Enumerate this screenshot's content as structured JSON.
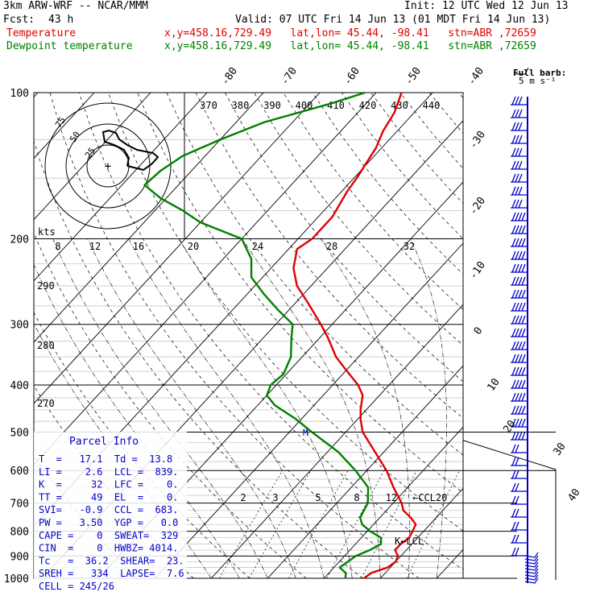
{
  "header": {
    "title": "3km ARW-WRF -- NCAR/MMM",
    "init": "Init: 12 UTC Wed 12 Jun 13",
    "fcst_label": "Fcst:",
    "fcst_value": "43 h",
    "valid": "Valid: 07 UTC Fri 14 Jun 13 (01 MDT Fri 14 Jun 13)",
    "temp_label": "Temperature",
    "temp_loc": "x,y=458.16,729.49   lat,lon= 45.44, -98.41   stn=ABR ,72659",
    "dew_label": "Dewpoint temperature",
    "dew_loc": "x,y=458.16,729.49   lat,lon= 45.44, -98.41   stn=ABR ,72659",
    "full_barb_label": "Full barb:",
    "full_barb_value": "5 m s⁻¹"
  },
  "colors": {
    "temperature": "#e00000",
    "dewpoint": "#008000",
    "barbs": "#0000cc",
    "grid": "#000000"
  },
  "chart_data": {
    "type": "line",
    "title": "",
    "y_axis": {
      "label": "",
      "scale": "log",
      "ticks": [
        100,
        200,
        300,
        400,
        500,
        600,
        700,
        800,
        900,
        1000
      ]
    },
    "x_axis_isotherms": {
      "ticks": [
        -80,
        -70,
        -60,
        -50,
        -40,
        -30,
        -20,
        -10,
        0,
        10,
        20,
        30,
        40
      ]
    },
    "theta_labels": [
      370,
      380,
      390,
      400,
      410,
      420,
      430,
      440
    ],
    "theta_left_labels": [
      290,
      280,
      270
    ],
    "hodograph": {
      "kts_label": "kts",
      "ticks": [
        8,
        12,
        16,
        20,
        24,
        28,
        32
      ],
      "ring_labels": [
        "75",
        "50",
        "25"
      ]
    },
    "mixing_ratio_labels": [
      "2",
      "3",
      "5",
      "8",
      "12"
    ],
    "level_markers": [
      "CCL20",
      "LCL"
    ],
    "series": [
      {
        "name": "Temperature",
        "points": [
          {
            "p": 1000,
            "t": 17.1
          },
          {
            "p": 975,
            "t": 17.5
          },
          {
            "p": 950,
            "t": 19.5
          },
          {
            "p": 925,
            "t": 20.0
          },
          {
            "p": 900,
            "t": 19.5
          },
          {
            "p": 875,
            "t": 18.0
          },
          {
            "p": 850,
            "t": 18.0
          },
          {
            "p": 825,
            "t": 18.5
          },
          {
            "p": 800,
            "t": 18.0
          },
          {
            "p": 775,
            "t": 17.5
          },
          {
            "p": 750,
            "t": 15.5
          },
          {
            "p": 725,
            "t": 13.0
          },
          {
            "p": 700,
            "t": 11.5
          },
          {
            "p": 650,
            "t": 7.5
          },
          {
            "p": 600,
            "t": 3.5
          },
          {
            "p": 550,
            "t": -1.5
          },
          {
            "p": 500,
            "t": -7.0
          },
          {
            "p": 470,
            "t": -9.5
          },
          {
            "p": 450,
            "t": -11.0
          },
          {
            "p": 420,
            "t": -13.0
          },
          {
            "p": 400,
            "t": -15.5
          },
          {
            "p": 370,
            "t": -20.5
          },
          {
            "p": 350,
            "t": -24.0
          },
          {
            "p": 320,
            "t": -28.5
          },
          {
            "p": 300,
            "t": -32.0
          },
          {
            "p": 270,
            "t": -38.0
          },
          {
            "p": 250,
            "t": -42.5
          },
          {
            "p": 230,
            "t": -46.0
          },
          {
            "p": 210,
            "t": -48.5
          },
          {
            "p": 200,
            "t": -47.5
          },
          {
            "p": 180,
            "t": -47.5
          },
          {
            "p": 160,
            "t": -49.0
          },
          {
            "p": 150,
            "t": -49.5
          },
          {
            "p": 130,
            "t": -51.0
          },
          {
            "p": 120,
            "t": -52.5
          },
          {
            "p": 110,
            "t": -53.5
          },
          {
            "p": 100,
            "t": -55.5
          }
        ]
      },
      {
        "name": "Dewpoint temperature",
        "points": [
          {
            "p": 1000,
            "t": 13.8
          },
          {
            "p": 975,
            "t": 13.0
          },
          {
            "p": 950,
            "t": 11.0
          },
          {
            "p": 925,
            "t": 11.5
          },
          {
            "p": 900,
            "t": 12.0
          },
          {
            "p": 875,
            "t": 13.5
          },
          {
            "p": 850,
            "t": 14.5
          },
          {
            "p": 825,
            "t": 13.5
          },
          {
            "p": 800,
            "t": 10.5
          },
          {
            "p": 775,
            "t": 8.0
          },
          {
            "p": 750,
            "t": 6.5
          },
          {
            "p": 700,
            "t": 5.5
          },
          {
            "p": 650,
            "t": 3.0
          },
          {
            "p": 600,
            "t": -2.0
          },
          {
            "p": 550,
            "t": -8.0
          },
          {
            "p": 500,
            "t": -16.0
          },
          {
            "p": 470,
            "t": -21.0
          },
          {
            "p": 440,
            "t": -27.0
          },
          {
            "p": 420,
            "t": -30.0
          },
          {
            "p": 400,
            "t": -31.0
          },
          {
            "p": 380,
            "t": -30.5
          },
          {
            "p": 350,
            "t": -32.0
          },
          {
            "p": 320,
            "t": -35.0
          },
          {
            "p": 300,
            "t": -37.0
          },
          {
            "p": 280,
            "t": -42.0
          },
          {
            "p": 260,
            "t": -47.0
          },
          {
            "p": 240,
            "t": -52.0
          },
          {
            "p": 220,
            "t": -55.0
          },
          {
            "p": 200,
            "t": -60.0
          },
          {
            "p": 185,
            "t": -70.0
          },
          {
            "p": 175,
            "t": -75.0
          },
          {
            "p": 165,
            "t": -81.0
          },
          {
            "p": 155,
            "t": -86.0
          },
          {
            "p": 145,
            "t": -85.5
          },
          {
            "p": 135,
            "t": -84.0
          },
          {
            "p": 125,
            "t": -80.0
          },
          {
            "p": 115,
            "t": -75.0
          },
          {
            "p": 105,
            "t": -66.0
          },
          {
            "p": 100,
            "t": -62.0
          }
        ]
      }
    ]
  },
  "parcel_info": {
    "title": "Parcel Info",
    "rows": [
      "T  =   17.1  Td =  13.8",
      "LI =    2.6  LCL =  839.",
      "K  =     32  LFC =    0.",
      "TT =     49  EL  =    0.",
      "SVI=   -0.9  CCL =  683.",
      "PW =   3.50  YGP =   0.0",
      "CAPE =    0  SWEAT=  329",
      "CIN  =    0  HWBZ= 4014.",
      "Tc   =  36.2  SHEAR=  23.",
      "SREH =   334  LAPSE=  7.6",
      "CELL = 245/26"
    ]
  }
}
